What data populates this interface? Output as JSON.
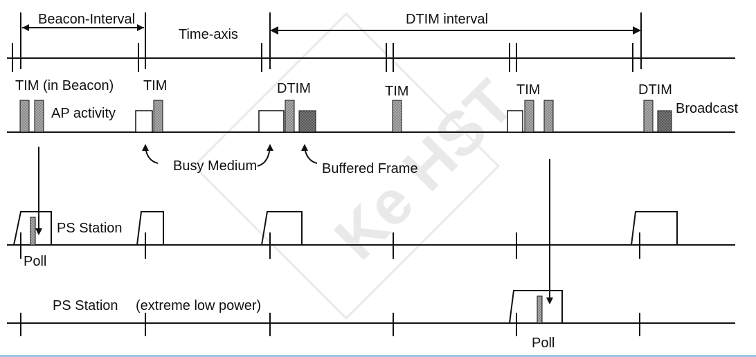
{
  "labels": {
    "beacon_interval": "Beacon-Interval",
    "time_axis": "Time-axis",
    "dtim_interval": "DTIM interval",
    "tim_in_beacon": "TIM (in Beacon)",
    "tim": "TIM",
    "dtim": "DTIM",
    "ap_activity": "AP activity",
    "broadcast": "Broadcast",
    "busy_medium": "Busy Medium",
    "buffered_frame": "Buffered  Frame",
    "ps_station": "PS Station",
    "poll": "Poll",
    "ps_station_2": "PS Station",
    "extreme_low_power": "(extreme low power)"
  },
  "colors": {
    "ink": "#111111",
    "frame_fill": "#7a7a7a",
    "frame_fill_dark": "#5a5a5a",
    "border_accent": "#9fc7e8"
  }
}
